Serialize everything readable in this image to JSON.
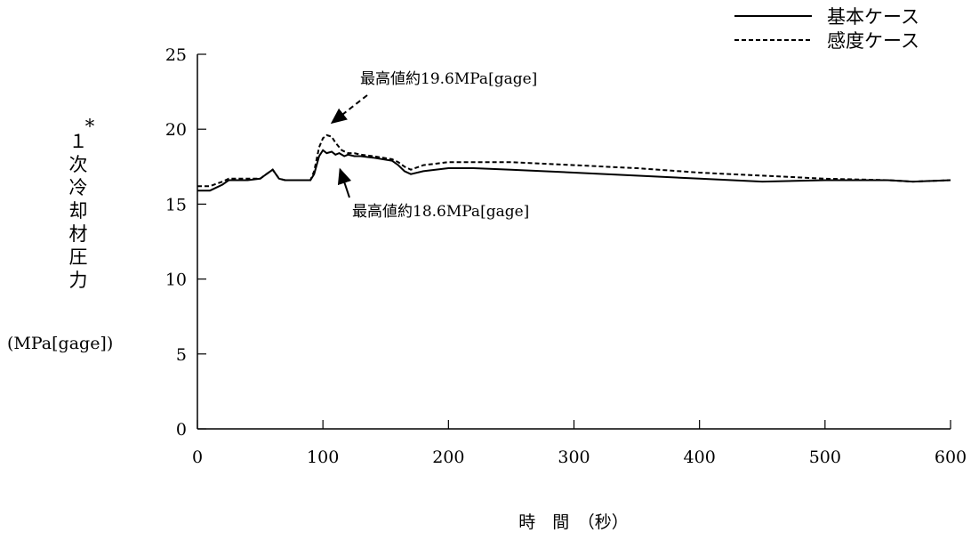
{
  "chart_data": {
    "type": "line",
    "xlabel": "時　間　（秒）",
    "ylabel_chars": [
      "１",
      "次",
      "冷",
      "却",
      "材",
      "圧",
      "力"
    ],
    "ylabel_marker": "*",
    "ylabel_unit": "(MPa[gage])",
    "xlim": [
      0,
      600
    ],
    "ylim": [
      0,
      25
    ],
    "x_ticks": [
      "0",
      "100",
      "200",
      "300",
      "400",
      "500",
      "600"
    ],
    "y_ticks": [
      "0",
      "5",
      "10",
      "15",
      "20",
      "25"
    ],
    "grid": false,
    "legend_position": "top-right",
    "series": [
      {
        "name": "基本ケース",
        "style": "solid",
        "color": "#000000",
        "x": [
          0,
          10,
          20,
          25,
          40,
          50,
          55,
          60,
          65,
          70,
          90,
          93,
          97,
          100,
          103,
          107,
          110,
          113,
          117,
          120,
          125,
          130,
          140,
          155,
          160,
          165,
          170,
          180,
          200,
          220,
          250,
          300,
          350,
          400,
          450,
          500,
          550,
          570,
          600
        ],
        "y": [
          15.9,
          15.9,
          16.3,
          16.6,
          16.6,
          16.7,
          17.0,
          17.3,
          16.7,
          16.6,
          16.6,
          17.0,
          18.2,
          18.6,
          18.4,
          18.5,
          18.3,
          18.4,
          18.2,
          18.3,
          18.2,
          18.2,
          18.1,
          17.9,
          17.6,
          17.2,
          17.0,
          17.2,
          17.4,
          17.4,
          17.3,
          17.1,
          16.9,
          16.7,
          16.5,
          16.6,
          16.6,
          16.5,
          16.6
        ]
      },
      {
        "name": "感度ケース",
        "style": "dashed",
        "color": "#000000",
        "x": [
          0,
          10,
          20,
          25,
          40,
          50,
          55,
          60,
          65,
          70,
          90,
          93,
          97,
          100,
          103,
          107,
          110,
          115,
          120,
          125,
          130,
          140,
          155,
          160,
          165,
          170,
          180,
          200,
          220,
          250,
          300,
          350,
          400,
          450,
          500,
          550,
          570,
          600
        ],
        "y": [
          16.2,
          16.2,
          16.5,
          16.7,
          16.7,
          16.7,
          17.0,
          17.3,
          16.7,
          16.6,
          16.6,
          17.2,
          18.8,
          19.4,
          19.6,
          19.5,
          19.1,
          18.6,
          18.4,
          18.4,
          18.3,
          18.2,
          18.0,
          17.8,
          17.5,
          17.3,
          17.6,
          17.8,
          17.8,
          17.8,
          17.6,
          17.4,
          17.1,
          16.9,
          16.7,
          16.6,
          16.5,
          16.6
        ]
      }
    ],
    "annotations": [
      {
        "text": "最高値約19.6MPa[gage]",
        "x": 103,
        "y": 19.6,
        "style": "dashed"
      },
      {
        "text": "最高値約18.6MPa[gage]",
        "x": 108,
        "y": 18.5,
        "style": "solid"
      }
    ]
  }
}
